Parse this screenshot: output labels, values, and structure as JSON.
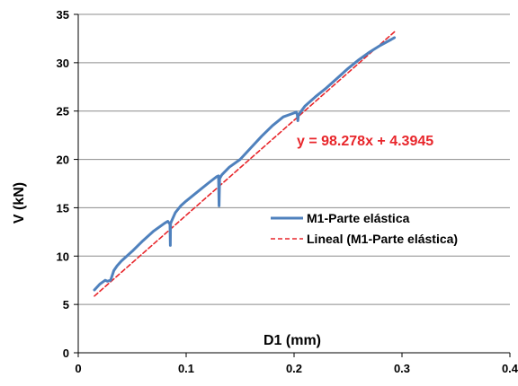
{
  "colors": {
    "series_line": "#4f81bd",
    "trend_line": "#e8262b",
    "equation": "#e8262b",
    "gridline": "#8c8c8c",
    "axis": "#000000"
  },
  "chart_data": {
    "type": "line",
    "xlabel": "D1 (mm)",
    "ylabel": "V (kN)",
    "xlim": [
      0,
      0.4
    ],
    "ylim": [
      0,
      35
    ],
    "x_ticks": [
      0,
      0.1,
      0.2,
      0.3,
      0.4
    ],
    "x_tick_labels": [
      "0",
      "0.1",
      "0.2",
      "0.3",
      "0.4"
    ],
    "y_ticks": [
      0,
      5,
      10,
      15,
      20,
      25,
      30,
      35
    ],
    "y_tick_labels": [
      "0",
      "5",
      "10",
      "15",
      "20",
      "25",
      "30",
      "35"
    ],
    "grid": "horizontal",
    "legend_position": "right",
    "series": [
      {
        "name": "M1-Parte elástica",
        "style": "solid",
        "x": [
          0.015,
          0.02,
          0.025,
          0.027,
          0.03,
          0.033,
          0.036,
          0.04,
          0.05,
          0.06,
          0.07,
          0.08,
          0.083,
          0.085,
          0.0853,
          0.0855,
          0.086,
          0.088,
          0.09,
          0.095,
          0.1,
          0.11,
          0.12,
          0.128,
          0.13,
          0.1305,
          0.131,
          0.1315,
          0.133,
          0.14,
          0.15,
          0.16,
          0.17,
          0.18,
          0.19,
          0.2,
          0.202,
          0.203,
          0.2035,
          0.204,
          0.206,
          0.21,
          0.22,
          0.23,
          0.24,
          0.25,
          0.26,
          0.27,
          0.28,
          0.29,
          0.293
        ],
        "y": [
          6.5,
          7.1,
          7.5,
          7.4,
          7.5,
          8.5,
          9.0,
          9.5,
          10.5,
          11.6,
          12.6,
          13.4,
          13.6,
          13.3,
          11.1,
          13.3,
          13.5,
          14.0,
          14.5,
          15.2,
          15.7,
          16.6,
          17.5,
          18.2,
          18.3,
          15.2,
          18.0,
          18.1,
          18.4,
          19.2,
          20.0,
          21.2,
          22.4,
          23.5,
          24.4,
          24.8,
          24.9,
          24.6,
          24.0,
          24.6,
          24.9,
          25.5,
          26.5,
          27.4,
          28.4,
          29.4,
          30.3,
          31.1,
          31.8,
          32.4,
          32.6
        ]
      },
      {
        "name": "Lineal (M1-Parte elástica)",
        "style": "dashed",
        "x": [
          0.015,
          0.293
        ],
        "y": [
          5.87,
          33.19
        ]
      }
    ],
    "annotations": [
      {
        "text": "y = 98.278x + 4.3945"
      }
    ]
  }
}
